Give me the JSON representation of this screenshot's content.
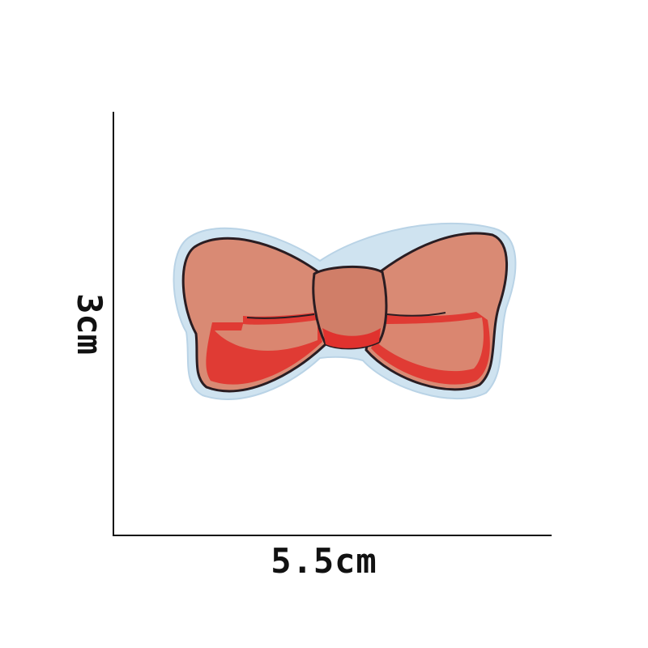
{
  "dimensions": {
    "width_label": "5.5cm",
    "height_label": "3cm"
  },
  "colors": {
    "background": "#ffffff",
    "axis": "#111111",
    "patch_border": "#cfe3f0",
    "bow_fill": "#d98a74",
    "bow_shadow": "#e0322e",
    "knot_fill": "#d07e68",
    "outline": "#2a1d22"
  }
}
